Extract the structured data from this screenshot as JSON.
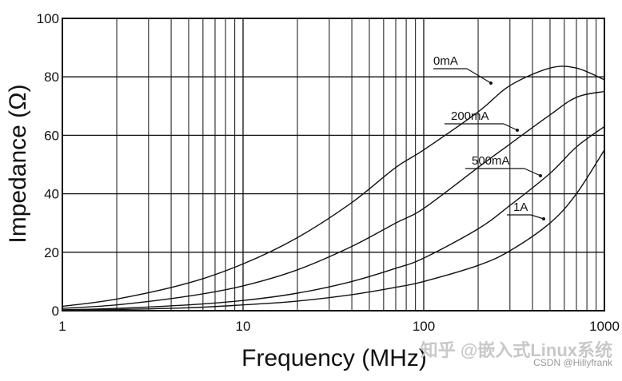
{
  "chart_data": {
    "type": "line",
    "xlabel": "Frequency (MHz)",
    "ylabel": "Impedance (Ω)",
    "xscale": "log",
    "xlim": [
      1,
      1000
    ],
    "ylim": [
      0,
      100
    ],
    "x_ticks": [
      "1",
      "10",
      "100",
      "1000"
    ],
    "y_ticks": [
      "0",
      "20",
      "40",
      "60",
      "80",
      "100"
    ],
    "grid": true,
    "legend": "inline labels",
    "series": [
      {
        "name": "0mA",
        "x": [
          1,
          2,
          5,
          10,
          20,
          40,
          70,
          100,
          200,
          300,
          500,
          700,
          1000
        ],
        "y": [
          1.5,
          4,
          9.5,
          16,
          25,
          37,
          49,
          55,
          68,
          77,
          83,
          83,
          79
        ]
      },
      {
        "name": "200mA",
        "x": [
          1,
          2,
          5,
          10,
          20,
          40,
          70,
          100,
          200,
          300,
          500,
          700,
          1000
        ],
        "y": [
          0.8,
          2,
          5,
          8.5,
          14,
          22,
          30,
          35,
          49,
          57,
          67,
          73,
          75
        ]
      },
      {
        "name": "500mA",
        "x": [
          1,
          2,
          5,
          10,
          20,
          40,
          70,
          100,
          200,
          300,
          500,
          700,
          1000
        ],
        "y": [
          0.3,
          0.8,
          2,
          3.5,
          6,
          10,
          14.5,
          18,
          28,
          36,
          47,
          56,
          63
        ]
      },
      {
        "name": "1A",
        "x": [
          1,
          2,
          5,
          10,
          20,
          40,
          70,
          100,
          200,
          300,
          500,
          700,
          1000
        ],
        "y": [
          0.2,
          0.4,
          1,
          2,
          3.3,
          5.5,
          8,
          10,
          15.5,
          20.5,
          30,
          40,
          55
        ]
      }
    ]
  },
  "watermark": {
    "line1": "知乎 @嵌入式Linux系统",
    "line2": "CSDN @Hillyfrank"
  }
}
